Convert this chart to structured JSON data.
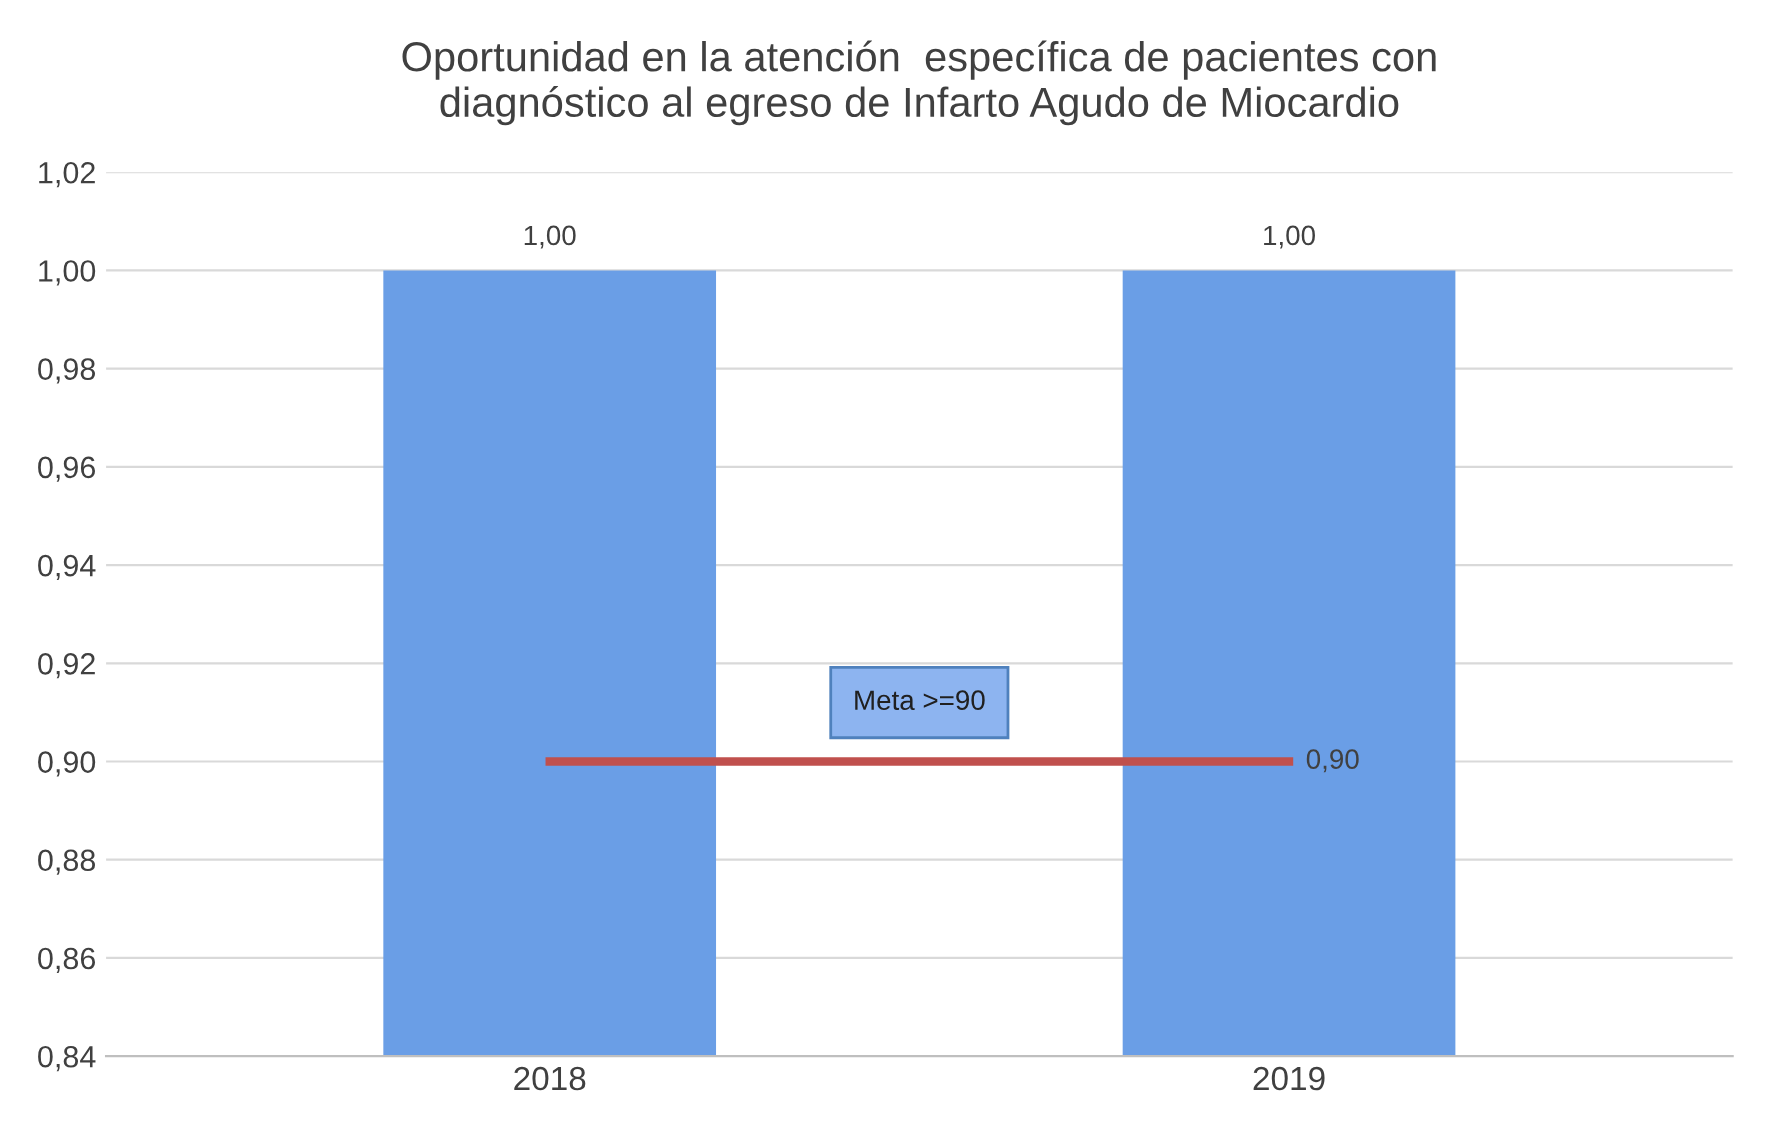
{
  "chart_data": {
    "type": "bar",
    "title": "Oportunidad en la atención  específica de pacientes con\ndiagnóstico al egreso de Infarto Agudo de Miocardio",
    "categories": [
      "2018",
      "2019"
    ],
    "series": [
      {
        "color": "#6a9ee6",
        "values": [
          1.0,
          1.0
        ],
        "value_labels": [
          "1,00",
          "1,00"
        ]
      },
      {
        "type": "line",
        "color": "#c0504d",
        "values": [
          0.9,
          0.9
        ],
        "value_labels": [
          null,
          "0,90"
        ]
      }
    ],
    "ylim": [
      0.84,
      1.02
    ],
    "yticks": [
      {
        "value": 0.84,
        "label": "0,84"
      },
      {
        "value": 0.86,
        "label": "0,86"
      },
      {
        "value": 0.88,
        "label": "0,88"
      },
      {
        "value": 0.9,
        "label": "0,90"
      },
      {
        "value": 0.92,
        "label": "0,92"
      },
      {
        "value": 0.94,
        "label": "0,94"
      },
      {
        "value": 0.96,
        "label": "0,96"
      },
      {
        "value": 0.98,
        "label": "0,98"
      },
      {
        "value": 1.0,
        "label": "1,00"
      },
      {
        "value": 1.02,
        "label": "1,02"
      }
    ],
    "grid": "y",
    "annotations": [
      "Meta >=90"
    ]
  }
}
